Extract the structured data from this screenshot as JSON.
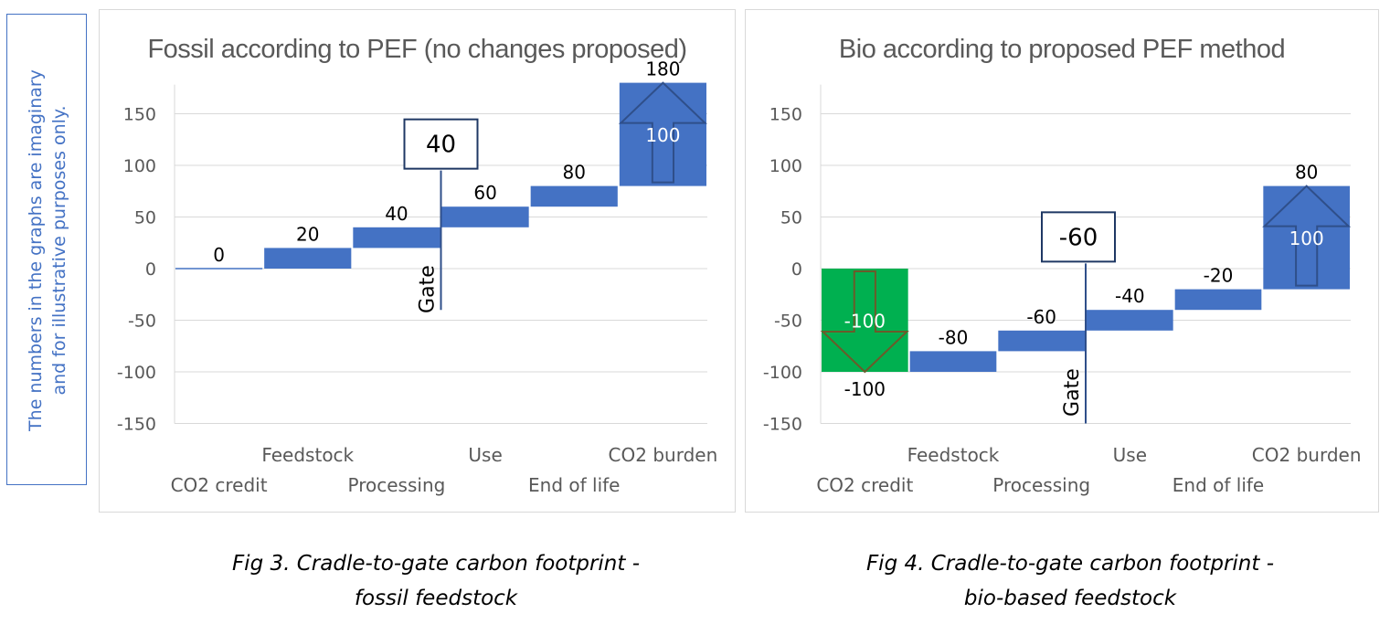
{
  "side_note": {
    "line1": "The numbers in the graphs are imaginary",
    "line2": "and for illustrative purposes only."
  },
  "captions": {
    "fig3_line1": "Fig 3. Cradle-to-gate carbon footprint -",
    "fig3_line2": "fossil feedstock",
    "fig4_line1": "Fig 4. Cradle-to-gate carbon footprint -",
    "fig4_line2": "bio-based feedstock"
  },
  "colors": {
    "bar": "#4472C4",
    "credit": "#00B050",
    "grid": "#d9d9d9",
    "text": "#595959"
  },
  "chart_data": [
    {
      "type": "bar",
      "subtype": "waterfall",
      "title": "Fossil according to PEF (no changes proposed)",
      "categories": [
        "CO2 credit",
        "Feedstock",
        "Processing",
        "Use",
        "End of life",
        "CO2 burden"
      ],
      "ylim": [
        -150,
        180
      ],
      "yticks": [
        150,
        100,
        50,
        0,
        -50,
        -100,
        -150
      ],
      "grid": true,
      "bars": [
        {
          "category": "CO2 credit",
          "start": 0,
          "end": 0,
          "label": "0"
        },
        {
          "category": "Feedstock",
          "start": 0,
          "end": 20,
          "label": "20"
        },
        {
          "category": "Processing",
          "start": 20,
          "end": 40,
          "label": "40"
        },
        {
          "category": "Use",
          "start": 40,
          "end": 60,
          "label": "60"
        },
        {
          "category": "End of life",
          "start": 60,
          "end": 80,
          "label": "80"
        },
        {
          "category": "CO2 burden",
          "start": 80,
          "end": 180,
          "label": "180",
          "inner_label": "100",
          "arrow": "up"
        }
      ],
      "gate": {
        "label": "Gate",
        "value_label": "40",
        "after_category": "Processing",
        "from": 95,
        "to": -40
      }
    },
    {
      "type": "bar",
      "subtype": "waterfall",
      "title": "Bio according to proposed PEF method",
      "categories": [
        "CO2 credit",
        "Feedstock",
        "Processing",
        "Use",
        "End of life",
        "CO2 burden"
      ],
      "ylim": [
        -150,
        180
      ],
      "yticks": [
        150,
        100,
        50,
        0,
        -50,
        -100,
        -150
      ],
      "grid": true,
      "bars": [
        {
          "category": "CO2 credit",
          "start": 0,
          "end": -100,
          "label": "-100",
          "inner_label": "-100",
          "arrow": "down",
          "highlight": true
        },
        {
          "category": "Feedstock",
          "start": -100,
          "end": -80,
          "label": "-80"
        },
        {
          "category": "Processing",
          "start": -80,
          "end": -60,
          "label": "-60"
        },
        {
          "category": "Use",
          "start": -60,
          "end": -40,
          "label": "-40"
        },
        {
          "category": "End of life",
          "start": -40,
          "end": -20,
          "label": "-20"
        },
        {
          "category": "CO2 burden",
          "start": -20,
          "end": 80,
          "label": "80",
          "inner_label": "100",
          "arrow": "up"
        }
      ],
      "gate": {
        "label": "Gate",
        "value_label": "-60",
        "after_category": "Processing",
        "from": 5,
        "to": -150
      }
    }
  ]
}
